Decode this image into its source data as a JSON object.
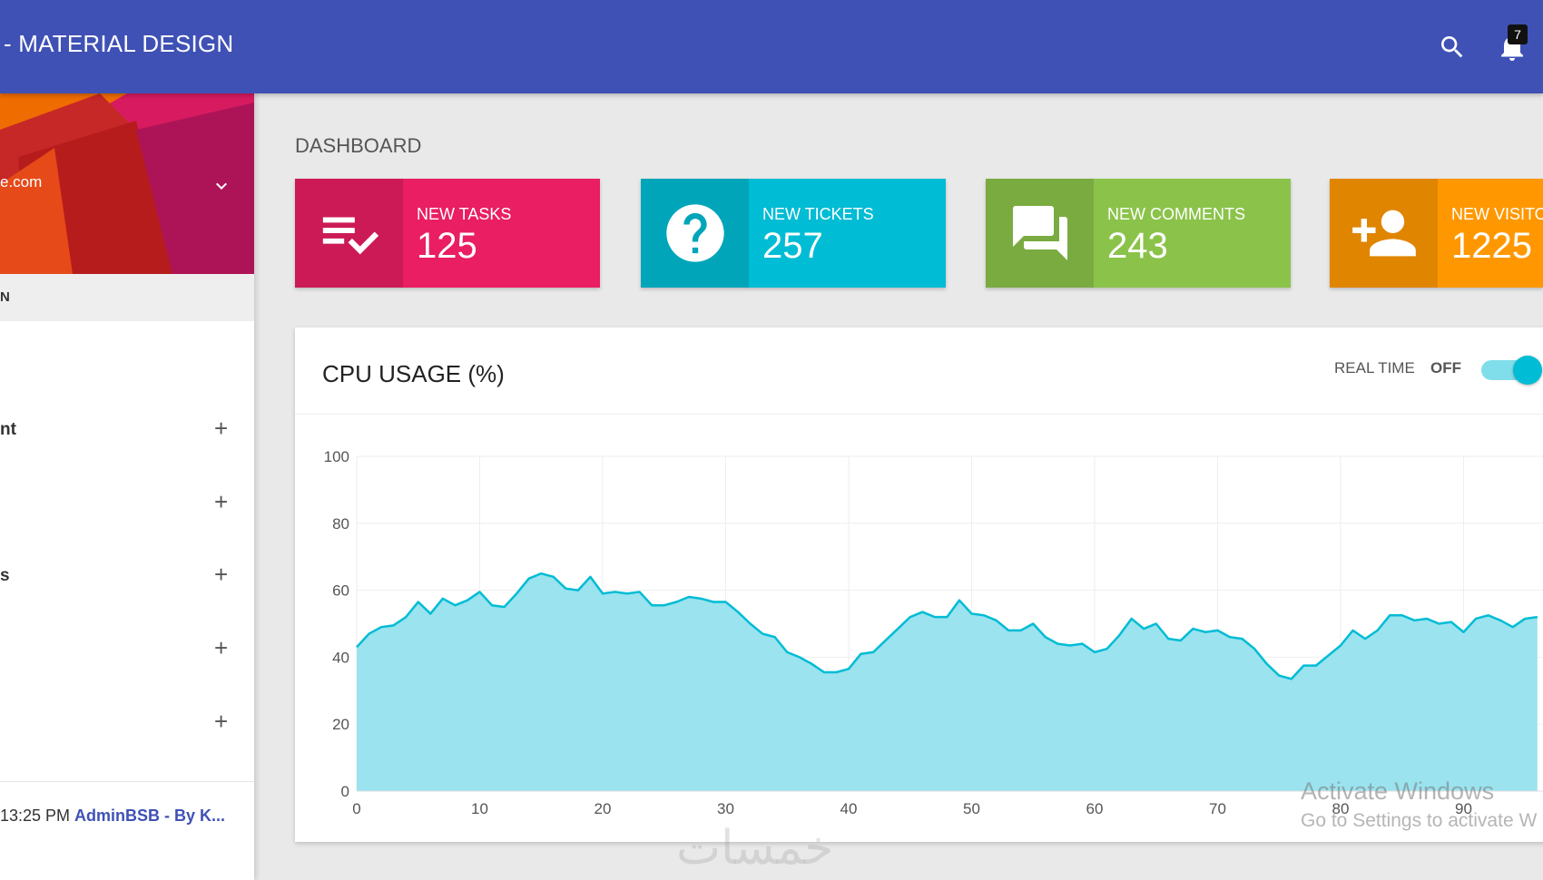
{
  "header": {
    "title": "- MATERIAL DESIGN",
    "notification_count": "7"
  },
  "sidebar": {
    "user_email": "e.com",
    "nav_header": "N",
    "menu_items": [
      {
        "label": "nt"
      },
      {
        "label": ""
      },
      {
        "label": "s"
      },
      {
        "label": ""
      },
      {
        "label": ""
      }
    ],
    "plus_symbol": "+",
    "footer": {
      "prefix": "13:25 PM ",
      "link": "AdminBSB - By K..."
    }
  },
  "main": {
    "page_title": "DASHBOARD",
    "info_boxes": [
      {
        "label": "NEW TASKS",
        "value": "125",
        "color": "#e91e63",
        "icon": "playlist-check-icon"
      },
      {
        "label": "NEW TICKETS",
        "value": "257",
        "color": "#00bcd4",
        "icon": "help-circle-icon"
      },
      {
        "label": "NEW COMMENTS",
        "value": "243",
        "color": "#8bc34a",
        "icon": "forum-icon"
      },
      {
        "label": "NEW VISITO",
        "value": "1225",
        "color": "#ff9800",
        "icon": "person-add-icon"
      }
    ],
    "cpu_card": {
      "title": "CPU USAGE (%)",
      "real_time_label": "REAL TIME",
      "real_time_state": "OFF"
    }
  },
  "watermarks": {
    "line1": "Activate Windows",
    "line2": "Go to Settings to activate W",
    "logo": "خمسات"
  },
  "chart_data": {
    "type": "area",
    "title": "CPU USAGE (%)",
    "xlabel": "",
    "ylabel": "",
    "xlim": [
      0,
      96
    ],
    "ylim": [
      0,
      100
    ],
    "x_ticks": [
      0,
      10,
      20,
      30,
      40,
      50,
      60,
      70,
      80,
      90
    ],
    "y_ticks": [
      0,
      20,
      40,
      60,
      80,
      100
    ],
    "grid": true,
    "color": "#00bcd4",
    "fill": "#9ae3ef",
    "values": [
      43,
      47,
      49,
      49.5,
      52,
      56.5,
      53,
      57.5,
      55.5,
      57,
      59.5,
      55.5,
      55,
      59,
      63.5,
      65,
      64,
      60.5,
      60,
      64,
      59,
      59.5,
      59,
      59.5,
      55.5,
      55.5,
      56.5,
      58,
      57.5,
      56.5,
      56.5,
      53.5,
      50,
      47,
      46,
      41.5,
      40,
      38,
      35.5,
      35.5,
      36.5,
      41,
      41.5,
      45,
      48.5,
      52,
      53.5,
      52,
      52,
      57,
      53,
      52.5,
      51,
      48,
      48,
      50,
      46,
      44,
      43.5,
      44,
      41.5,
      42.5,
      46.5,
      51.5,
      48.5,
      50,
      45.5,
      45,
      48.5,
      47.5,
      48,
      46,
      45.5,
      42.5,
      38,
      34.5,
      33.5,
      37.5,
      37.5,
      40.5,
      43.5,
      48,
      45.5,
      48,
      52.5,
      52.5,
      51,
      51.5,
      50,
      50.5,
      47.5,
      51.5,
      52.5,
      51,
      49,
      51.5,
      52
    ]
  }
}
